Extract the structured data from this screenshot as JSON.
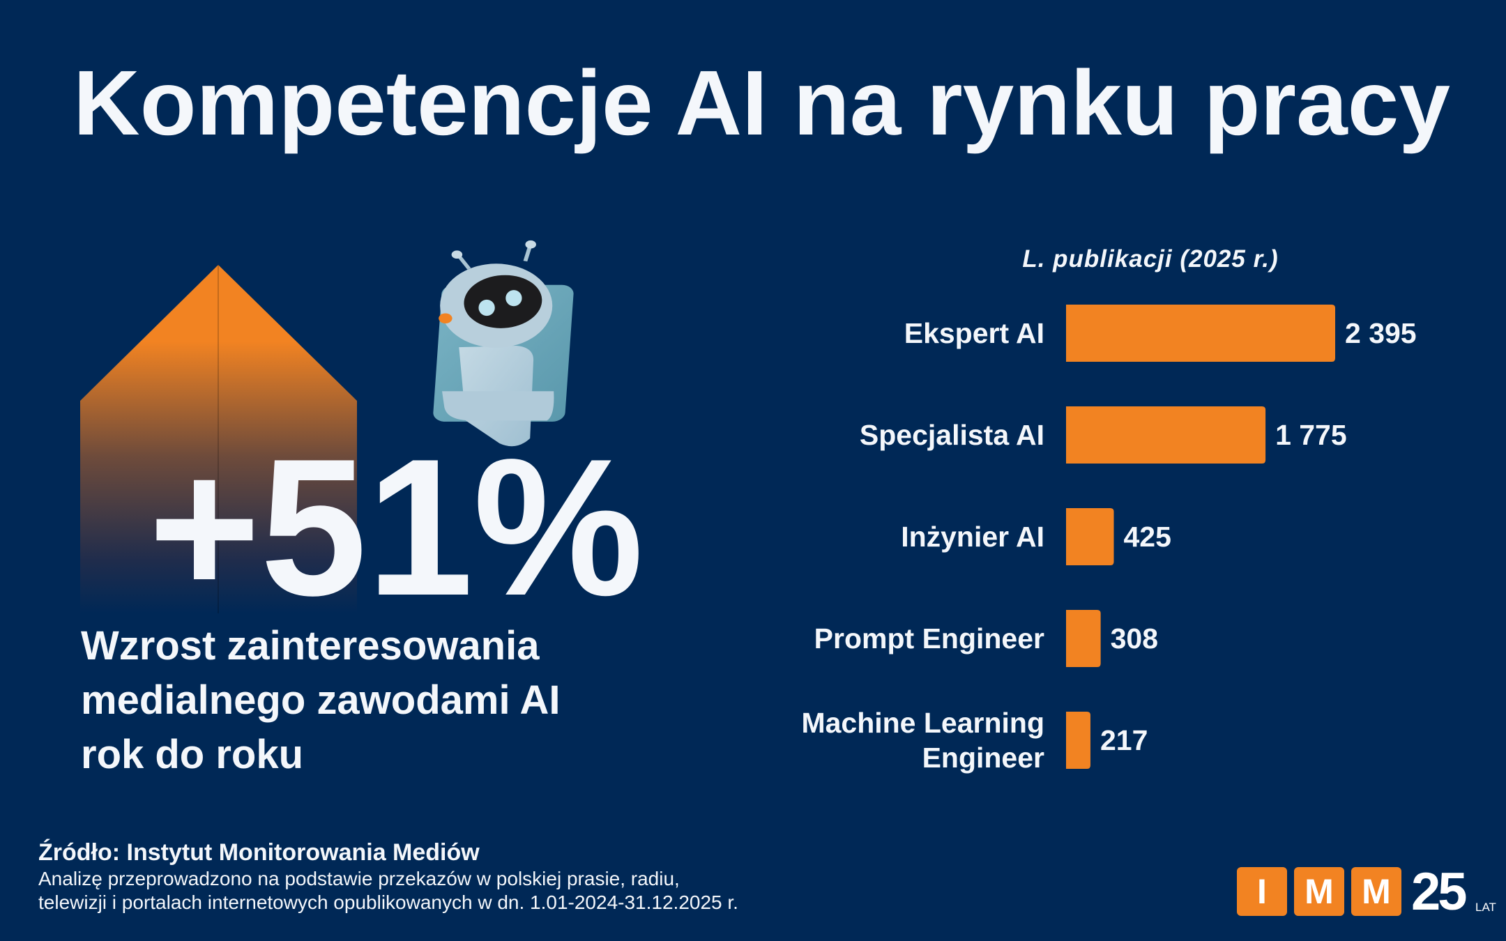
{
  "title": "Kompetencje AI na rynku pracy",
  "headline": {
    "value": "+51%",
    "description_lines": [
      "Wzrost zainteresowania",
      "medialnego zawodami AI",
      "rok do roku"
    ]
  },
  "colors": {
    "background": "#002856",
    "accent": "#f28322",
    "text": "#f4f7fb"
  },
  "chart_data": {
    "type": "bar",
    "orientation": "horizontal",
    "title": "L. publikacji (2025 r.)",
    "categories": [
      "Ekspert AI",
      "Specjalista AI",
      "Inżynier AI",
      "Prompt Engineer",
      "Machine Learning Engineer"
    ],
    "category_lines": [
      [
        "Ekspert AI"
      ],
      [
        "Specjalista AI"
      ],
      [
        "Inżynier AI"
      ],
      [
        "Prompt Engineer"
      ],
      [
        "Machine Learning",
        "Engineer"
      ]
    ],
    "values": [
      2395,
      1775,
      425,
      308,
      217
    ],
    "value_labels": [
      "2 395",
      "1 775",
      "425",
      "308",
      "217"
    ],
    "grid": false,
    "color": "#f28322"
  },
  "source": {
    "heading": "Źródło: Instytut Monitorowania Mediów",
    "lines": [
      "Analizę przeprowadzono na podstawie przekazów w polskiej prasie, radiu,",
      "telewizji i portalach internetowych opublikowanych w dn. 1.01-2024-31.12.2025 r."
    ]
  },
  "logo": {
    "letters": [
      "I",
      "M",
      "M"
    ],
    "years": "25",
    "years_label": "LAT"
  }
}
